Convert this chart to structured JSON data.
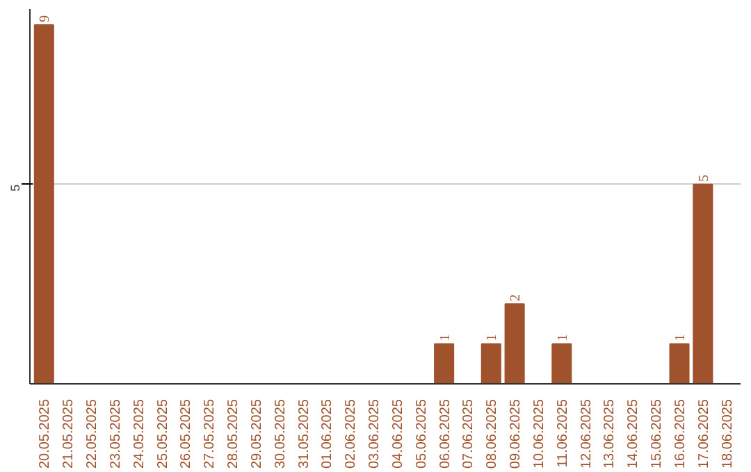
{
  "chart_data": {
    "type": "bar",
    "categories": [
      "20.05.2025",
      "21.05.2025",
      "22.05.2025",
      "23.05.2025",
      "24.05.2025",
      "25.05.2025",
      "26.05.2025",
      "27.05.2025",
      "28.05.2025",
      "29.05.2025",
      "30.05.2025",
      "31.05.2025",
      "01.06.2025",
      "02.06.2025",
      "03.06.2025",
      "04.06.2025",
      "05.06.2025",
      "06.06.2025",
      "07.06.2025",
      "08.06.2025",
      "09.06.2025",
      "10.06.2025",
      "11.06.2025",
      "12.06.2025",
      "13.06.2025",
      "14.06.2025",
      "15.06.2025",
      "16.06.2025",
      "17.06.2025",
      "18.06.2025"
    ],
    "values": [
      9,
      0,
      0,
      0,
      0,
      0,
      0,
      0,
      0,
      0,
      0,
      0,
      0,
      0,
      0,
      0,
      0,
      1,
      0,
      1,
      2,
      0,
      1,
      0,
      0,
      0,
      0,
      1,
      5,
      0
    ],
    "value_labels": [
      "9",
      null,
      null,
      null,
      null,
      null,
      null,
      null,
      null,
      null,
      null,
      null,
      null,
      null,
      null,
      null,
      null,
      "1",
      null,
      "1",
      "2",
      null,
      "1",
      null,
      null,
      null,
      null,
      "1",
      "5",
      null
    ],
    "color": "#a0522d",
    "ylim": [
      0,
      9.4
    ],
    "yticks": [
      5
    ],
    "grid": "y"
  }
}
